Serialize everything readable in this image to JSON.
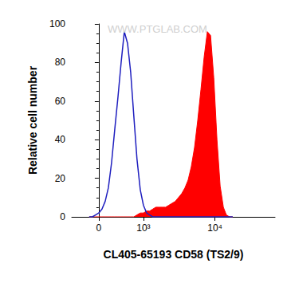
{
  "chart_data": {
    "type": "histogram",
    "x_label": "CL405-65193 CD58 (TS2/9)",
    "y_label": "Relative cell number",
    "watermark": "WWW.PTGLAB.COM",
    "x": [
      -160,
      -106,
      -53,
      0,
      53,
      106,
      160,
      216,
      273,
      335,
      399,
      467,
      540,
      617,
      701,
      790,
      893,
      1000,
      1118,
      1240,
      1377,
      1525,
      1686,
      1904,
      2100,
      2330,
      2580,
      2860,
      3170,
      3510,
      3890,
      4300,
      4760,
      5270,
      5830,
      6450,
      7140,
      7890,
      8730,
      9660,
      10680,
      11800,
      13050,
      14330,
      15840,
      17500
    ],
    "series": [
      {
        "type": "area",
        "color": "#ff0000",
        "values": [
          0,
          0,
          0,
          0,
          0,
          0,
          0,
          0,
          0,
          0,
          0,
          0,
          0,
          0,
          0,
          1,
          2,
          2,
          3,
          3,
          4,
          5,
          5,
          5,
          5,
          6,
          7,
          8,
          10,
          12,
          15,
          19,
          26,
          36,
          50,
          66,
          83,
          96,
          94,
          72,
          40,
          16,
          5,
          1,
          0,
          0
        ]
      },
      {
        "type": "line",
        "color": "#1f1fbf",
        "values": [
          0,
          0,
          1,
          2,
          4,
          8,
          15,
          28,
          45,
          62,
          80,
          96,
          90,
          75,
          52,
          30,
          14,
          6,
          2,
          1,
          0,
          0,
          0,
          0,
          0,
          0,
          0,
          0,
          0,
          0,
          0,
          0,
          0,
          0,
          0,
          0,
          0,
          0,
          0,
          0,
          0,
          0,
          0,
          0,
          0,
          0
        ]
      }
    ],
    "xlim": [
      -500,
      66000
    ],
    "xticks": [
      0,
      {
        "value": 1000,
        "label": "10³"
      },
      {
        "value": 10000,
        "label": "10⁴"
      }
    ],
    "ylim": [
      0,
      100
    ],
    "yticks": [
      0,
      20,
      40,
      60,
      80,
      100
    ],
    "grid": false
  }
}
